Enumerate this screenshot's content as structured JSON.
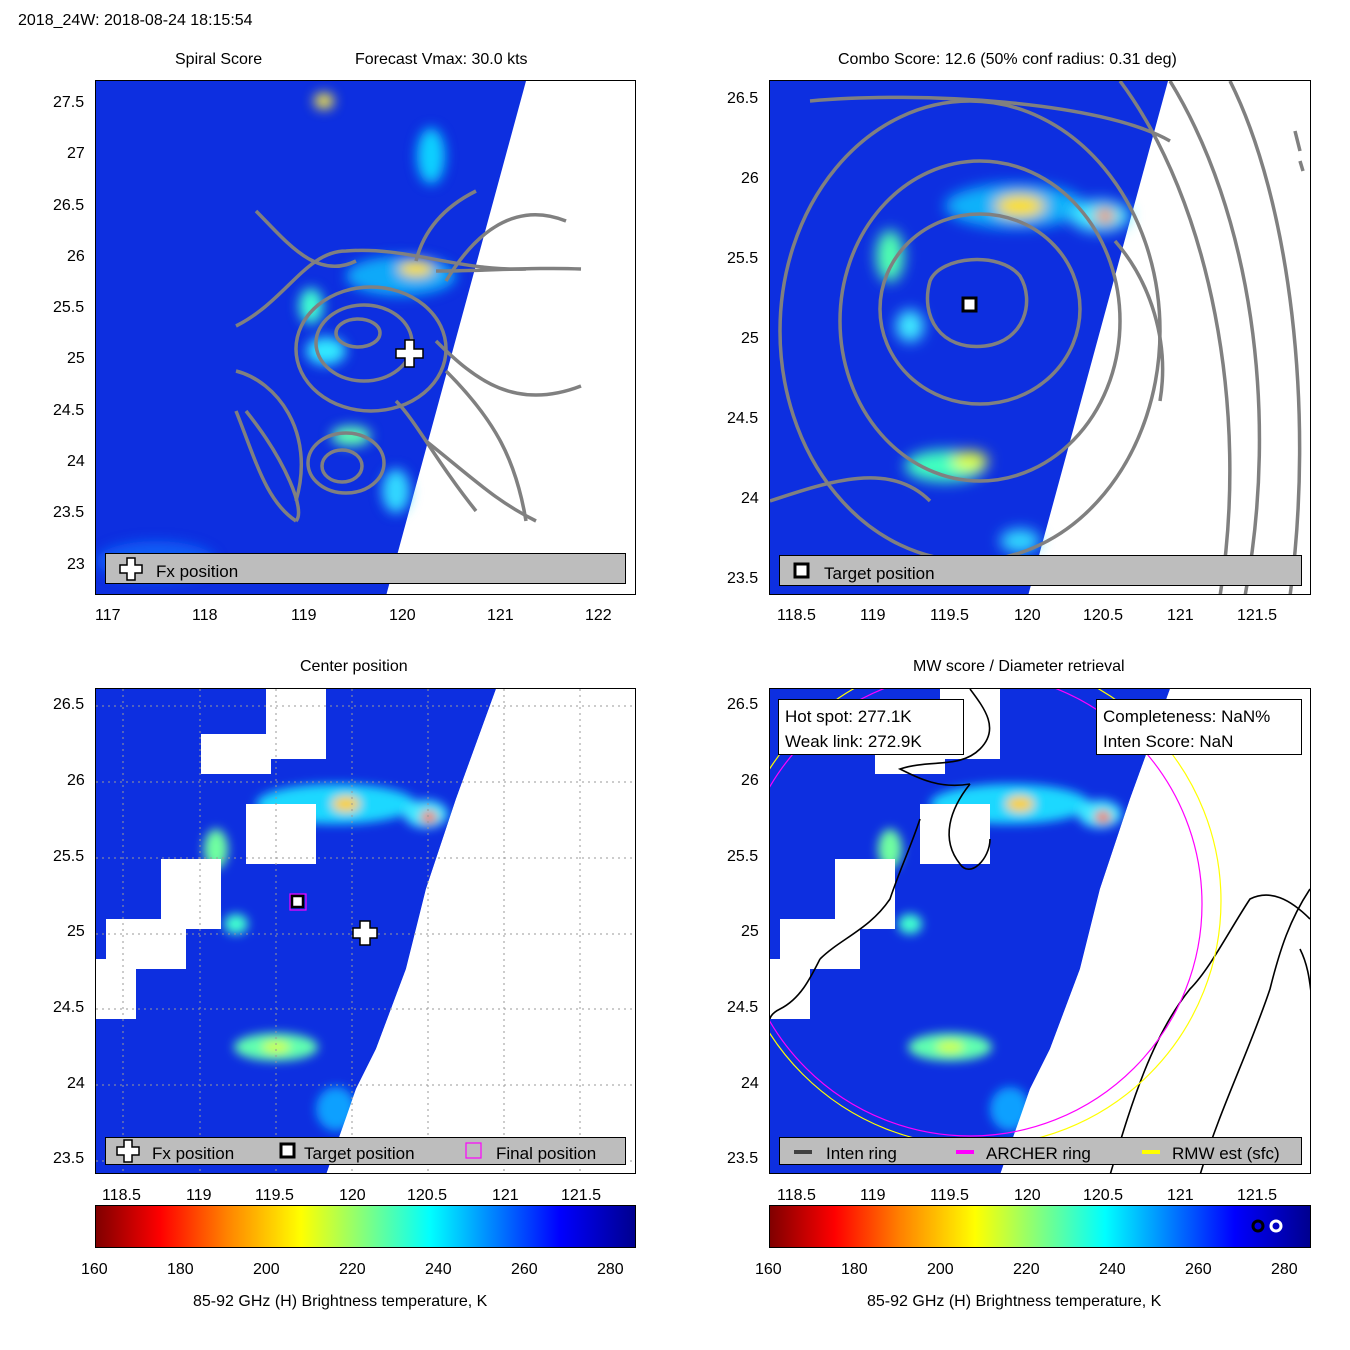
{
  "header": {
    "title": "2018_24W: 2018-08-24 18:15:54"
  },
  "colors": {
    "field_blue": "#0d2fe0",
    "contour_gray": "#808080",
    "legend_bg": "#bdbdbd",
    "archer_ring": "#ff00ff",
    "rmw_ring": "#ffff00"
  },
  "panels": {
    "spiral": {
      "title_left": "Spiral Score",
      "title_right": "Forecast Vmax: 30.0 kts",
      "legend": {
        "fx_label": "Fx position"
      },
      "icons": {
        "fx": "plus-icon"
      }
    },
    "combo": {
      "title": "Combo Score: 12.6  (50% conf radius: 0.31 deg)",
      "legend": {
        "target_label": "Target position"
      },
      "icons": {
        "target": "square-icon"
      }
    },
    "center": {
      "title": "Center position",
      "legend": {
        "fx_label": "Fx position",
        "target_label": "Target position",
        "final_label": "Final position"
      }
    },
    "mw": {
      "title": "MW score / Diameter retrieval",
      "info_left": {
        "hot_spot": "Hot spot: 277.1K",
        "weak_link": "Weak link: 272.9K"
      },
      "info_right": {
        "completeness": "Completeness: NaN%",
        "inten_score": "Inten Score: NaN"
      },
      "legend": {
        "inten_label": "Inten ring",
        "archer_label": "ARCHER ring",
        "rmw_label": "RMW est (sfc)"
      }
    }
  },
  "colorbar": {
    "label": "85-92 GHz (H) Brightness temperature, K",
    "ticks": [
      "160",
      "180",
      "200",
      "220",
      "240",
      "260",
      "280"
    ]
  },
  "chart_data": [
    {
      "type": "heatmap",
      "title": "Spiral Score",
      "subtitle": "Forecast Vmax: 30.0 kts",
      "xlim": [
        116.95,
        122.35
      ],
      "ylim": [
        22.72,
        27.78
      ],
      "x_ticks": [
        "117",
        "118",
        "119",
        "120",
        "121",
        "122"
      ],
      "y_ticks": [
        "27.5",
        "27",
        "26.5",
        "26",
        "25.5",
        "25",
        "24.5",
        "24",
        "23.5",
        "23"
      ],
      "markers": [
        {
          "name": "Fx position",
          "lon": 120.08,
          "lat": 25.0
        }
      ],
      "legend": [
        "Fx position"
      ]
    },
    {
      "type": "heatmap",
      "title": "Combo Score: 12.6  (50% conf radius: 0.31 deg)",
      "xlim": [
        118.3,
        121.85
      ],
      "ylim": [
        23.4,
        26.62
      ],
      "x_ticks": [
        "118.5",
        "119",
        "119.5",
        "120",
        "120.5",
        "121",
        "121.5"
      ],
      "y_ticks": [
        "26.5",
        "26",
        "25.5",
        "25",
        "24.5",
        "24",
        "23.5"
      ],
      "markers": [
        {
          "name": "Target position",
          "lon": 119.62,
          "lat": 25.21
        }
      ],
      "legend": [
        "Target position"
      ]
    },
    {
      "type": "heatmap",
      "title": "Center position",
      "xlim": [
        118.3,
        121.85
      ],
      "ylim": [
        23.4,
        26.62
      ],
      "x_ticks": [
        "118.5",
        "119",
        "119.5",
        "120",
        "120.5",
        "121",
        "121.5"
      ],
      "y_ticks": [
        "26.5",
        "26",
        "25.5",
        "25",
        "24.5",
        "24",
        "23.5"
      ],
      "grid": true,
      "markers": [
        {
          "name": "Fx position",
          "lon": 120.08,
          "lat": 25.0
        },
        {
          "name": "Target position",
          "lon": 119.62,
          "lat": 25.21
        },
        {
          "name": "Final position",
          "lon": 119.62,
          "lat": 25.21
        }
      ],
      "legend": [
        "Fx position",
        "Target position",
        "Final position"
      ]
    },
    {
      "type": "heatmap",
      "title": "MW score / Diameter retrieval",
      "xlim": [
        118.3,
        121.85
      ],
      "ylim": [
        23.4,
        26.62
      ],
      "x_ticks": [
        "118.5",
        "119",
        "119.5",
        "120",
        "120.5",
        "121",
        "121.5"
      ],
      "y_ticks": [
        "26.5",
        "26",
        "25.5",
        "25",
        "24.5",
        "24",
        "23.5"
      ],
      "hot_spot_K": 277.1,
      "weak_link_K": 272.9,
      "completeness": "NaN%",
      "inten_score": "NaN",
      "rings": [
        {
          "name": "ARCHER ring",
          "center_lon": 119.62,
          "center_lat": 25.21,
          "radius_deg": 1.55
        },
        {
          "name": "RMW est (sfc)",
          "center_lon": 119.62,
          "center_lat": 25.21,
          "radius_deg": 1.58
        }
      ],
      "legend": [
        "Inten ring",
        "ARCHER ring",
        "RMW est (sfc)"
      ]
    }
  ]
}
